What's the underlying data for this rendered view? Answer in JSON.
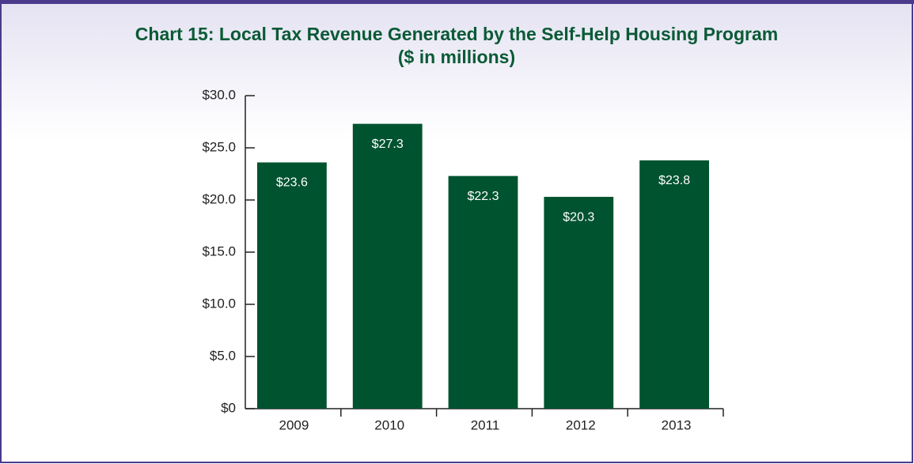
{
  "chart_data": {
    "type": "bar",
    "title": "Chart 15: Local Tax Revenue Generated by the Self-Help Housing Program",
    "subtitle": "($ in millions)",
    "categories": [
      "2009",
      "2010",
      "2011",
      "2012",
      "2013"
    ],
    "values": [
      23.6,
      27.3,
      22.3,
      20.3,
      23.8
    ],
    "value_labels": [
      "$23.6",
      "$27.3",
      "$22.3",
      "$20.3",
      "$23.8"
    ],
    "color": "#00532f",
    "ylim": [
      0,
      30
    ],
    "yticks": [
      {
        "value": 0,
        "label": "$0"
      },
      {
        "value": 5,
        "label": "$5.0"
      },
      {
        "value": 10,
        "label": "$10.0"
      },
      {
        "value": 15,
        "label": "$15.0"
      },
      {
        "value": 20,
        "label": "$20.0"
      },
      {
        "value": 25,
        "label": "$25.0"
      },
      {
        "value": 30,
        "label": "$30.0"
      }
    ],
    "grid": false
  }
}
